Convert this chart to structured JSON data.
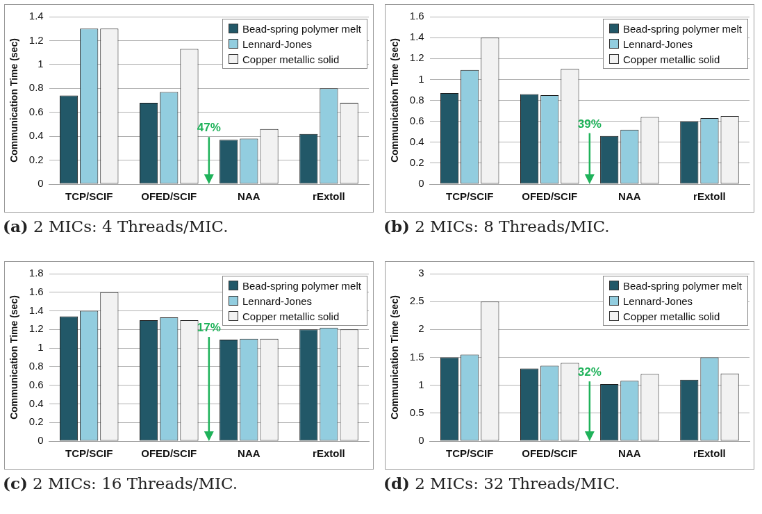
{
  "chart_data": [
    {
      "type": "bar",
      "title": "(a) 2 MICs: 4 Threads/MIC.",
      "ylabel": "Communication Time (sec)",
      "categories": [
        "TCP/SCIF",
        "OFED/SCIF",
        "NAA",
        "rExtoll"
      ],
      "series": [
        {
          "name": "Bead-spring polymer melt",
          "color": "#225868",
          "values": [
            0.74,
            0.68,
            0.37,
            0.42
          ]
        },
        {
          "name": "Lennard-Jones",
          "color": "#92cddf",
          "values": [
            1.3,
            0.77,
            0.38,
            0.8
          ]
        },
        {
          "name": "Copper metallic solid",
          "color": "#f2f2f2",
          "values": [
            1.3,
            1.13,
            0.46,
            0.68
          ]
        }
      ],
      "ylim": [
        0,
        1.4
      ],
      "yticks": [
        0,
        0.2,
        0.4,
        0.6,
        0.8,
        1,
        1.2,
        1.4
      ],
      "grid": "y",
      "legend": "top right",
      "annotations": [
        {
          "text": "47%",
          "x": "NAA",
          "y": 0.37
        }
      ]
    },
    {
      "type": "bar",
      "title": "(b) 2 MICs: 8 Threads/MIC.",
      "ylabel": "Communication Time (sec)",
      "categories": [
        "TCP/SCIF",
        "OFED/SCIF",
        "NAA",
        "rExtoll"
      ],
      "series": [
        {
          "name": "Bead-spring polymer melt",
          "color": "#225868",
          "values": [
            0.87,
            0.86,
            0.46,
            0.6
          ]
        },
        {
          "name": "Lennard-Jones",
          "color": "#92cddf",
          "values": [
            1.09,
            0.85,
            0.52,
            0.63
          ]
        },
        {
          "name": "Copper metallic solid",
          "color": "#f2f2f2",
          "values": [
            1.4,
            1.1,
            0.64,
            0.65
          ]
        }
      ],
      "ylim": [
        0,
        1.6
      ],
      "yticks": [
        0,
        0.2,
        0.4,
        0.6,
        0.8,
        1,
        1.2,
        1.4,
        1.6
      ],
      "grid": "y",
      "legend": "top right",
      "annotations": [
        "39%"
      ]
    },
    {
      "type": "bar",
      "title": "(c) 2 MICs: 16 Threads/MIC.",
      "ylabel": "Communication Time (sec)",
      "categories": [
        "TCP/SCIF",
        "OFED/SCIF",
        "NAA",
        "rExtoll"
      ],
      "series": [
        {
          "name": "Bead-spring polymer melt",
          "color": "#225868",
          "values": [
            1.34,
            1.3,
            1.09,
            1.2
          ]
        },
        {
          "name": "Lennard-Jones",
          "color": "#92cddf",
          "values": [
            1.4,
            1.33,
            1.1,
            1.22
          ]
        },
        {
          "name": "Copper metallic solid",
          "color": "#f2f2f2",
          "values": [
            1.6,
            1.3,
            1.1,
            1.2
          ]
        }
      ],
      "ylim": [
        0,
        1.8
      ],
      "yticks": [
        0,
        0.2,
        0.4,
        0.6,
        0.8,
        1,
        1.2,
        1.4,
        1.6,
        1.8
      ],
      "grid": "y",
      "legend": "top right",
      "annotations": [
        {
          "text": "17%",
          "x": "NAA",
          "y": 1.09
        }
      ]
    },
    {
      "type": "bar",
      "title": "(d) 2 MICs: 32 Threads/MIC.",
      "ylabel": "Communication Time (sec)",
      "categories": [
        "TCP/SCIF",
        "OFED/SCIF",
        "NAA",
        "rExtoll"
      ],
      "series": [
        {
          "name": "Bead-spring polymer melt",
          "color": "#225868",
          "values": [
            1.5,
            1.3,
            1.02,
            1.1
          ]
        },
        {
          "name": "Lennard-Jones",
          "color": "#92cddf",
          "values": [
            1.55,
            1.35,
            1.08,
            1.5
          ]
        },
        {
          "name": "Copper metallic solid",
          "color": "#f2f2f2",
          "values": [
            2.5,
            1.4,
            1.2,
            1.21
          ]
        }
      ],
      "ylim": [
        0,
        3
      ],
      "yticks": [
        0,
        0.5,
        1,
        1.5,
        2,
        2.5,
        3
      ],
      "grid": "y",
      "legend": "top right",
      "annotations": [
        {
          "text": "32%",
          "x": "NAA",
          "y": 1.02
        }
      ]
    }
  ]
}
